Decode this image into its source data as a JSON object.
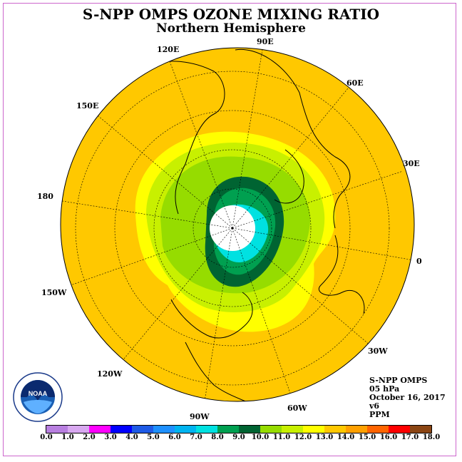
{
  "header": {
    "title": "S-NPP OMPS OZONE MIXING RATIO",
    "subtitle": "Northern Hemisphere"
  },
  "longitude_labels": [
    {
      "id": "90E",
      "text": "90E"
    },
    {
      "id": "60E",
      "text": "60E"
    },
    {
      "id": "30E",
      "text": "30E"
    },
    {
      "id": "0",
      "text": "0"
    },
    {
      "id": "30W",
      "text": "30W"
    },
    {
      "id": "60W",
      "text": "60W"
    },
    {
      "id": "90W",
      "text": "90W"
    },
    {
      "id": "120W",
      "text": "120W"
    },
    {
      "id": "150W",
      "text": "150W"
    },
    {
      "id": "180",
      "text": "180"
    },
    {
      "id": "150E",
      "text": "150E"
    },
    {
      "id": "120E",
      "text": "120E"
    }
  ],
  "info": {
    "instrument": "S-NPP OMPS",
    "level": "05 hPa",
    "date": "October 16, 2017",
    "version": "v6",
    "units": "PPM"
  },
  "logo": {
    "text": "NOAA"
  },
  "colorbar": {
    "ticks": [
      "0.0",
      "1.0",
      "2.0",
      "3.0",
      "4.0",
      "5.0",
      "6.0",
      "7.0",
      "8.0",
      "9.0",
      "10.0",
      "11.0",
      "12.0",
      "13.0",
      "14.0",
      "15.0",
      "16.0",
      "17.0",
      "18.0"
    ],
    "colors": [
      "#b87fe0",
      "#d8a8f0",
      "#ff00ff",
      "#0000ff",
      "#1e5ae6",
      "#1e90ff",
      "#00b4f0",
      "#00e1e1",
      "#00a050",
      "#006432",
      "#96dc00",
      "#c8f000",
      "#ffff00",
      "#ffc800",
      "#ffa000",
      "#ff6400",
      "#ff0000",
      "#8b4513"
    ]
  },
  "map_colors": {
    "ocean_band": "#ffc800",
    "pale_yellow": "#ffff00",
    "yellow_green": "#c8f000",
    "light_green": "#96dc00",
    "dark_green": "#006432",
    "green": "#00a050",
    "cyan": "#00e1e1",
    "polar_cap": "#ffffff"
  }
}
